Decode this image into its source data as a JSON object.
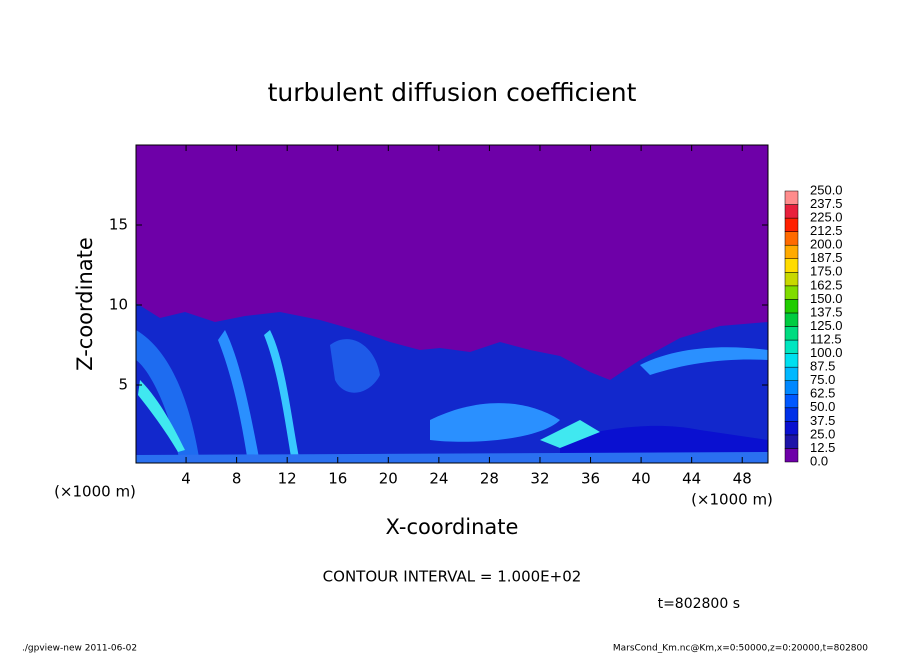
{
  "chart_data": {
    "type": "contour",
    "title": "turbulent diffusion coefficient",
    "xlabel": "X-coordinate",
    "ylabel": "Z-coordinate",
    "xunit": "(×1000 m)",
    "yunit": "(×1000 m)",
    "xlim": [
      0,
      50
    ],
    "ylim": [
      0,
      20
    ],
    "xticks": [
      4,
      8,
      12,
      16,
      20,
      24,
      28,
      32,
      36,
      40,
      44,
      48
    ],
    "yticks": [
      5,
      10,
      15
    ],
    "colorbar": {
      "levels": [
        {
          "value": 0,
          "label": "0.0"
        },
        {
          "value": 12.5,
          "label": "12.5"
        },
        {
          "value": 25,
          "label": "25.0"
        },
        {
          "value": 37.5,
          "label": "37.5"
        },
        {
          "value": 50,
          "label": "50.0"
        },
        {
          "value": 62.5,
          "label": "62.5"
        },
        {
          "value": 75,
          "label": "75.0"
        },
        {
          "value": 87.5,
          "label": "87.5"
        },
        {
          "value": 100,
          "label": "100.0"
        },
        {
          "value": 112.5,
          "label": "112.5"
        },
        {
          "value": 125,
          "label": "125.0"
        },
        {
          "value": 137.5,
          "label": "137.5"
        },
        {
          "value": 150,
          "label": "150.0"
        },
        {
          "value": 162.5,
          "label": "162.5"
        },
        {
          "value": 175,
          "label": "175.0"
        },
        {
          "value": 187.5,
          "label": "187.5"
        },
        {
          "value": 200,
          "label": "200.0"
        },
        {
          "value": 212.5,
          "label": "212.5"
        },
        {
          "value": 225,
          "label": "225.0"
        },
        {
          "value": 237.5,
          "label": "237.5"
        },
        {
          "value": 250,
          "label": "250.0"
        }
      ],
      "colors": [
        "#6e00a8",
        "#1e14a8",
        "#0a10d0",
        "#0030e8",
        "#0058ff",
        "#0088ff",
        "#00b8ff",
        "#00e0f0",
        "#00e6c0",
        "#00dc80",
        "#00cc40",
        "#20cc00",
        "#80dc00",
        "#c8d800",
        "#ffdc00",
        "#ffaa00",
        "#ff6a00",
        "#ff2000",
        "#e8203c",
        "#ff8c8c"
      ]
    },
    "contour_interval": "CONTOUR INTERVAL = 1.000E+02",
    "time_label": "t=802800 s",
    "footer_left": "./gpview-new   2011-06-02",
    "footer_right": "MarsCond_Km.nc@Km,x=0:50000,z=0:20000,t=802800"
  }
}
